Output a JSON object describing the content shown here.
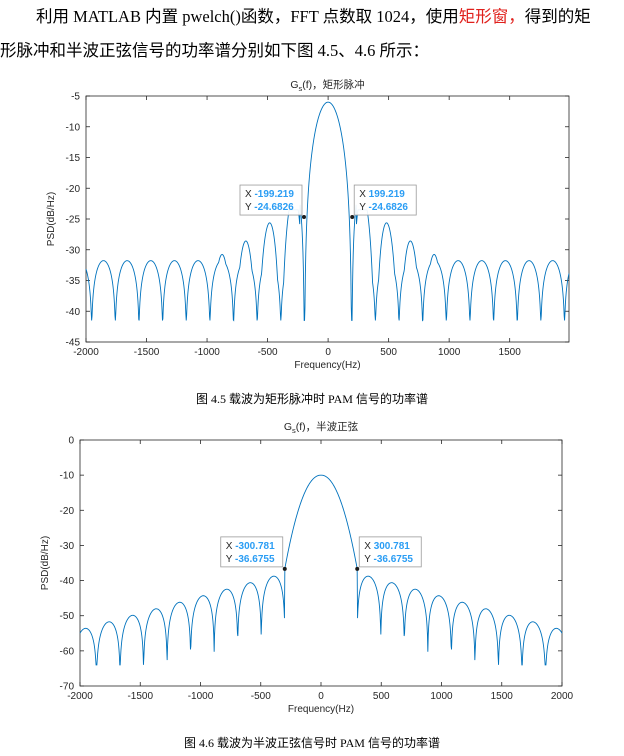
{
  "paragraph": {
    "line1_before": "利用 MATLAB 内置 pwelch()函数，FFT 点数取 1024，使用",
    "line1_highlight": "矩形窗，",
    "line1_after": "得到的矩",
    "line2": "形脉冲和半波正弦信号的功率谱分别如下图 4.5、4.6 所示："
  },
  "colors": {
    "line": "#0072bd",
    "datatip_value": "#2a9df4",
    "highlight_text": "#e0201c"
  },
  "figures": [
    {
      "caption": "图 4.5 载波为矩形脉冲时 PAM 信号的功率谱"
    },
    {
      "caption": "图 4.6 载波为半波正弦信号时 PAM 信号的功率谱"
    }
  ],
  "chart_data": [
    {
      "type": "line",
      "title_main": "G",
      "title_sub": "s",
      "title_rest": "(f)，矩形脉冲",
      "xlabel": "Frequency(Hz)",
      "ylabel": "PSD(dB/Hz)",
      "xlim": [
        -2000,
        1990
      ],
      "ylim": [
        -45,
        -5
      ],
      "xticks": [
        -2000,
        -1500,
        -1000,
        -500,
        0,
        500,
        1000,
        1500
      ],
      "yticks": [
        -5,
        -10,
        -15,
        -20,
        -25,
        -30,
        -35,
        -40,
        -45
      ],
      "grid": false,
      "model": {
        "kind": "sinc",
        "peak_db": -6,
        "null_spacing": 195.3,
        "floor_db": -30,
        "ripple_min_db": -41.5
      },
      "datatips": [
        {
          "x": -199.219,
          "y": -24.6826,
          "x_label": "X",
          "y_label": "Y",
          "x_text": "-199.219",
          "y_text": "-24.6826"
        },
        {
          "x": 199.219,
          "y": -24.6826,
          "x_label": "X",
          "y_label": "Y",
          "x_text": "199.219",
          "y_text": "-24.6826"
        }
      ]
    },
    {
      "type": "line",
      "title_main": "G",
      "title_sub": "s",
      "title_rest": "(f)，半波正弦",
      "xlabel": "Frequency(Hz)",
      "ylabel": "PSD(dB/Hz)",
      "xlim": [
        -2000,
        2000
      ],
      "ylim": [
        -70,
        0
      ],
      "xticks": [
        -2000,
        -1500,
        -1000,
        -500,
        0,
        500,
        1000,
        1500,
        2000
      ],
      "yticks": [
        0,
        -10,
        -20,
        -30,
        -40,
        -50,
        -60,
        -70
      ],
      "grid": false,
      "model": {
        "kind": "halfsine",
        "peak_db": -10,
        "main_null": 300.8,
        "null_spacing": 195.3,
        "floor_db": -54,
        "ripple_min_db": -64
      },
      "datatips": [
        {
          "x": -300.781,
          "y": -36.6755,
          "x_label": "X",
          "y_label": "Y",
          "x_text": "-300.781",
          "y_text": "-36.6755"
        },
        {
          "x": 300.781,
          "y": -36.6755,
          "x_label": "X",
          "y_label": "Y",
          "x_text": "300.781",
          "y_text": "-36.6755"
        }
      ]
    }
  ]
}
